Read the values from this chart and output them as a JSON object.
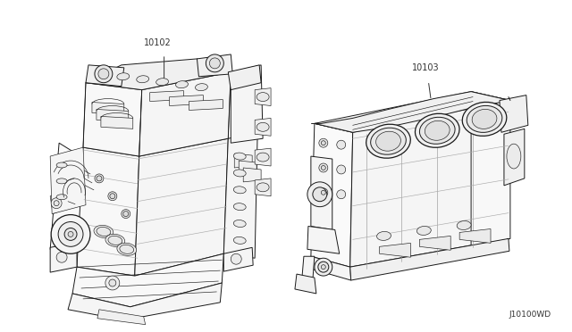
{
  "background_color": "#ffffff",
  "part1_label": "10102",
  "part2_label": "10103",
  "diagram_id": "J10100WD",
  "fig_width": 6.4,
  "fig_height": 3.72,
  "dpi": 100,
  "line_color": "#1a1a1a",
  "face_color": "#ffffff",
  "label_color": "#333333",
  "label_fontsize": 7.0,
  "id_fontsize": 6.5
}
